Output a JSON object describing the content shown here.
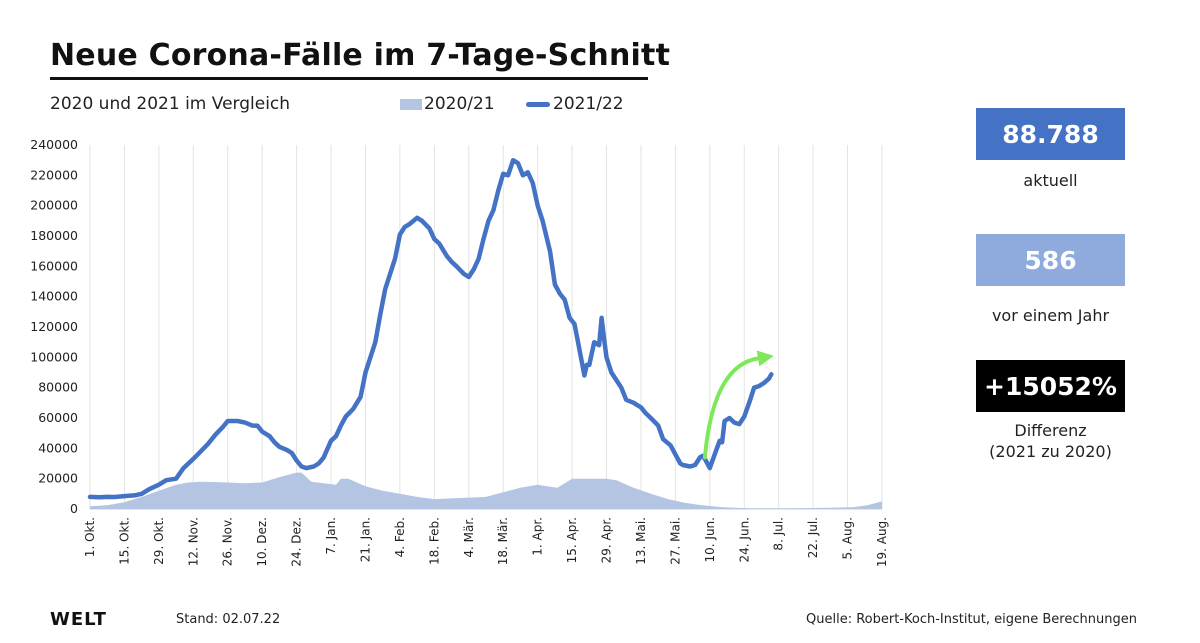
{
  "header": {
    "title": "Neue Corona-Fälle im 7-Tage-Schnitt",
    "subtitle": "2020 und 2021 im Vergleich"
  },
  "kpis": [
    {
      "value": "88.788",
      "label": "aktuell",
      "color": "#4472c4"
    },
    {
      "value": "586",
      "label": "vor einem Jahr",
      "color": "#8faadc"
    },
    {
      "value": "+15052%",
      "label_line1": "Differenz",
      "label_line2": "(2021 zu 2020)",
      "color": "#000000"
    }
  ],
  "footer": {
    "logo": "WELT",
    "stand": "Stand:  02.07.22",
    "source": "Quelle: Robert-Koch-Institut, eigene Berechnungen"
  },
  "chart_data": {
    "type": "area",
    "title": "Neue Corona-Fälle im 7-Tage-Schnitt",
    "subtitle": "2020 und 2021 im Vergleich",
    "xlabel": "",
    "ylabel": "",
    "ylim": [
      0,
      240000
    ],
    "yticks": [
      0,
      20000,
      40000,
      60000,
      80000,
      100000,
      120000,
      140000,
      160000,
      180000,
      200000,
      220000,
      240000
    ],
    "x_domain_days": [
      0,
      322
    ],
    "xticks": [
      {
        "day": 0,
        "label": "1. Okt."
      },
      {
        "day": 14,
        "label": "15. Okt."
      },
      {
        "day": 28,
        "label": "29. Okt."
      },
      {
        "day": 42,
        "label": "12. Nov."
      },
      {
        "day": 56,
        "label": "26. Nov."
      },
      {
        "day": 70,
        "label": "10. Dez."
      },
      {
        "day": 84,
        "label": "24. Dez."
      },
      {
        "day": 98,
        "label": "7. Jan."
      },
      {
        "day": 112,
        "label": "21. Jan."
      },
      {
        "day": 126,
        "label": "4. Feb."
      },
      {
        "day": 140,
        "label": "18. Feb."
      },
      {
        "day": 154,
        "label": "4. Mär."
      },
      {
        "day": 168,
        "label": "18. Mär."
      },
      {
        "day": 182,
        "label": "1. Apr."
      },
      {
        "day": 196,
        "label": "15. Apr."
      },
      {
        "day": 210,
        "label": "29. Apr."
      },
      {
        "day": 224,
        "label": "13. Mai."
      },
      {
        "day": 238,
        "label": "27. Mai."
      },
      {
        "day": 252,
        "label": "10. Jun."
      },
      {
        "day": 266,
        "label": "24. Jun."
      },
      {
        "day": 280,
        "label": "8. Jul."
      },
      {
        "day": 294,
        "label": "22. Jul."
      },
      {
        "day": 308,
        "label": "5. Aug."
      },
      {
        "day": 322,
        "label": "19. Aug."
      }
    ],
    "grid": true,
    "legend_position": "top",
    "series": [
      {
        "name": "2020/21",
        "kind": "area",
        "color": "#b4c5e4",
        "x": [
          0,
          7,
          14,
          21,
          28,
          35,
          40,
          45,
          50,
          56,
          63,
          70,
          77,
          84,
          86,
          90,
          95,
          100,
          102,
          105,
          112,
          119,
          126,
          133,
          140,
          147,
          154,
          161,
          168,
          175,
          182,
          186,
          190,
          196,
          203,
          210,
          214,
          221,
          228,
          235,
          242,
          249,
          256,
          263,
          270,
          280,
          290,
          300,
          310,
          316,
          322
        ],
        "values": [
          1800,
          2500,
          4500,
          8000,
          12000,
          16000,
          17500,
          18000,
          17800,
          17500,
          17000,
          17500,
          21000,
          24000,
          24000,
          18000,
          17000,
          16000,
          20000,
          20000,
          15000,
          12000,
          10000,
          8000,
          6500,
          7000,
          7500,
          8000,
          11000,
          14000,
          16000,
          15000,
          14000,
          20000,
          20000,
          20000,
          19000,
          14000,
          10000,
          6500,
          4000,
          2500,
          1300,
          700,
          500,
          500,
          600,
          800,
          1200,
          2500,
          5000
        ]
      },
      {
        "name": "2021/22",
        "kind": "line",
        "color": "#4472c4",
        "x": [
          0,
          4,
          7,
          10,
          14,
          18,
          21,
          24,
          28,
          31,
          35,
          38,
          42,
          45,
          48,
          51,
          54,
          56,
          58,
          60,
          63,
          66,
          68,
          70,
          73,
          75,
          77,
          80,
          82,
          84,
          86,
          88,
          91,
          93,
          95,
          98,
          100,
          102,
          104,
          107,
          110,
          112,
          114,
          116,
          118,
          120,
          122,
          124,
          126,
          128,
          130,
          133,
          135,
          138,
          140,
          142,
          145,
          147,
          149,
          152,
          154,
          156,
          158,
          160,
          162,
          164,
          166,
          168,
          170,
          172,
          174,
          176,
          178,
          180,
          182,
          184,
          187,
          189,
          191,
          193,
          195,
          197,
          199,
          201,
          202,
          203,
          205,
          207,
          208,
          209,
          210,
          212,
          214,
          216,
          218,
          221,
          224,
          226,
          228,
          231,
          233,
          236,
          238,
          240,
          241,
          244,
          246,
          248,
          249,
          250,
          252,
          254,
          256,
          257,
          258,
          260,
          262,
          264,
          266,
          268,
          270,
          272,
          274,
          276,
          277
        ],
        "values": [
          8000,
          7800,
          8000,
          7900,
          8500,
          9000,
          10000,
          13000,
          16000,
          19000,
          20000,
          27000,
          33000,
          38000,
          43000,
          49000,
          54000,
          58000,
          58000,
          58000,
          57000,
          55000,
          55000,
          51000,
          48000,
          44000,
          41000,
          39000,
          37000,
          32000,
          28000,
          27000,
          28000,
          30000,
          34000,
          45000,
          48000,
          55000,
          61000,
          66000,
          74000,
          90000,
          100000,
          110000,
          128000,
          145000,
          155000,
          165000,
          181000,
          186000,
          188000,
          192000,
          190000,
          185000,
          178000,
          175000,
          167000,
          163000,
          160000,
          155000,
          153000,
          158000,
          165000,
          178000,
          190000,
          197000,
          210000,
          221000,
          220000,
          230000,
          228000,
          220000,
          222000,
          215000,
          200000,
          190000,
          170000,
          148000,
          142000,
          138000,
          126000,
          122000,
          105000,
          88000,
          95000,
          95000,
          110000,
          108000,
          126000,
          112000,
          100000,
          90000,
          85000,
          80000,
          72000,
          70000,
          67000,
          63000,
          60000,
          55000,
          46000,
          42000,
          36000,
          30000,
          29000,
          28000,
          29000,
          34000,
          35000,
          33000,
          27000,
          36000,
          45000,
          44000,
          58000,
          60000,
          57000,
          56000,
          61000,
          70000,
          80000,
          81000,
          83000,
          86000,
          88788
        ]
      }
    ],
    "annotations": [
      {
        "type": "arrow",
        "color": "#7ee85a",
        "from": {
          "x": 250,
          "y": 34000
        },
        "to": {
          "x": 278,
          "y": 101000
        }
      }
    ]
  }
}
